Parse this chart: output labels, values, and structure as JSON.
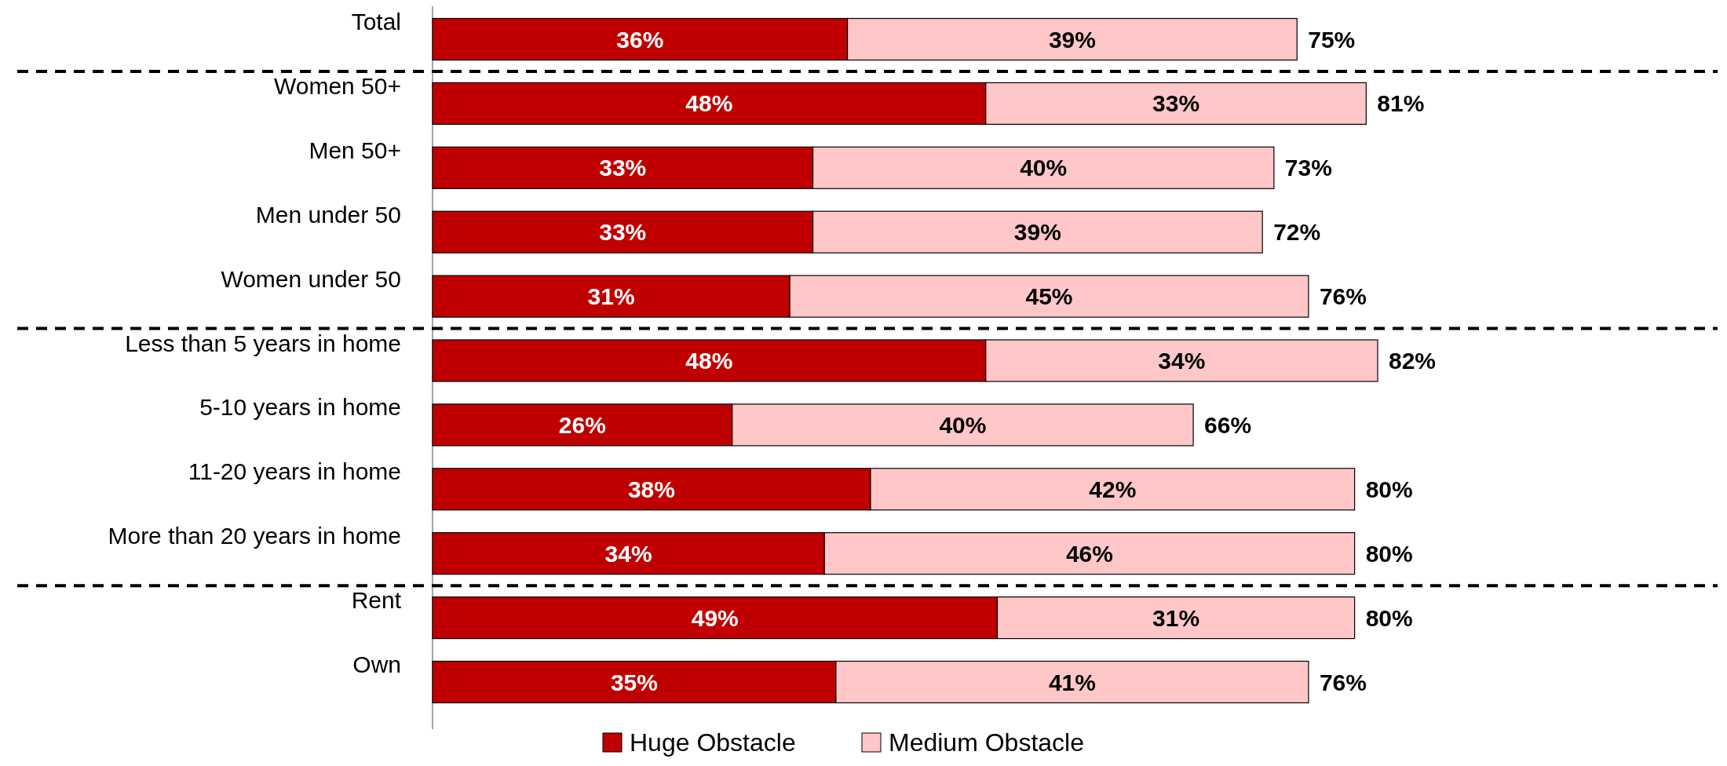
{
  "chart_data": {
    "type": "bar",
    "orientation": "horizontal",
    "stacked": true,
    "legend": "bottom",
    "categories": [
      "Total",
      "Women 50+",
      "Men 50+",
      "Men under 50",
      "Women under 50",
      "Less than 5 years in home",
      "5-10 years in home",
      "11-20 years in home",
      "More than 20 years in home",
      "Rent",
      "Own"
    ],
    "series": [
      {
        "name": "Huge Obstacle",
        "color": "#c00000",
        "values": [
          36,
          48,
          33,
          33,
          31,
          48,
          26,
          38,
          34,
          49,
          35
        ],
        "value_labels": [
          "36%",
          "48%",
          "33%",
          "33%",
          "31%",
          "48%",
          "26%",
          "38%",
          "34%",
          "49%",
          "35%"
        ]
      },
      {
        "name": "Medium Obstacle",
        "color": "#ffc7c7",
        "values": [
          39,
          33,
          40,
          39,
          45,
          34,
          40,
          42,
          46,
          31,
          41
        ],
        "value_labels": [
          "39%",
          "33%",
          "40%",
          "39%",
          "45%",
          "34%",
          "40%",
          "42%",
          "46%",
          "31%",
          "41%"
        ]
      }
    ],
    "totals": [
      "75%",
      "81%",
      "73%",
      "72%",
      "76%",
      "82%",
      "66%",
      "80%",
      "80%",
      "80%",
      "76%"
    ]
  }
}
